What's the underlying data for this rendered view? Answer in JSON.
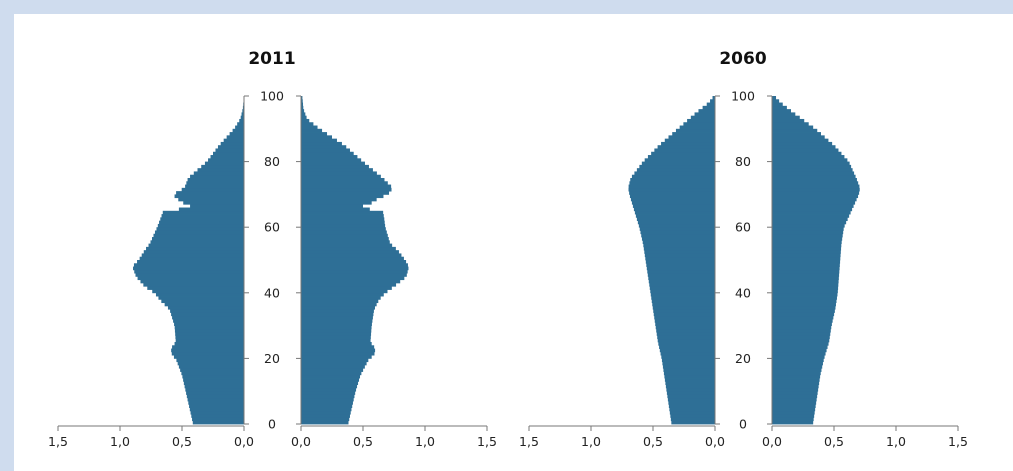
{
  "colors": {
    "bar": "#2e6f96",
    "axis": "#777777",
    "background": "#cfdcee"
  },
  "chart_data": [
    {
      "type": "bar",
      "subtype": "population-pyramid",
      "title": "2011",
      "xlabel": "",
      "ylabel": "",
      "ylim": [
        0,
        100
      ],
      "xlim": [
        0,
        1.5
      ],
      "y_ticks": [
        "0",
        "20",
        "40",
        "60",
        "80",
        "100"
      ],
      "x_ticks": [
        "1,5",
        "1,0",
        "0,5",
        "0,0",
        "0,0",
        "0,5",
        "1,0",
        "1,5"
      ],
      "grid": false,
      "profile_ages": [
        0,
        5,
        10,
        15,
        20,
        21,
        23,
        25,
        30,
        35,
        38,
        40,
        42,
        45,
        48,
        50,
        53,
        55,
        60,
        63,
        65,
        66,
        67,
        69,
        70,
        72,
        75,
        80,
        85,
        90,
        93,
        96,
        100
      ],
      "series": [
        {
          "side": "left",
          "values": [
            0.41,
            0.44,
            0.47,
            0.5,
            0.55,
            0.58,
            0.59,
            0.55,
            0.56,
            0.6,
            0.68,
            0.72,
            0.8,
            0.87,
            0.9,
            0.85,
            0.8,
            0.76,
            0.7,
            0.67,
            0.65,
            0.4,
            0.47,
            0.55,
            0.57,
            0.48,
            0.45,
            0.3,
            0.2,
            0.08,
            0.03,
            0.01,
            0.0
          ]
        },
        {
          "side": "right",
          "values": [
            0.38,
            0.41,
            0.44,
            0.48,
            0.55,
            0.59,
            0.6,
            0.56,
            0.57,
            0.59,
            0.63,
            0.68,
            0.75,
            0.85,
            0.87,
            0.84,
            0.78,
            0.72,
            0.68,
            0.67,
            0.66,
            0.45,
            0.55,
            0.63,
            0.7,
            0.74,
            0.66,
            0.5,
            0.35,
            0.15,
            0.05,
            0.02,
            0.01
          ]
        }
      ]
    },
    {
      "type": "bar",
      "subtype": "population-pyramid",
      "title": "2060",
      "xlabel": "",
      "ylabel": "",
      "ylim": [
        0,
        100
      ],
      "xlim": [
        0,
        1.5
      ],
      "y_ticks": [
        "0",
        "20",
        "40",
        "60",
        "80",
        "100"
      ],
      "x_ticks": [
        "1,5",
        "1,0",
        "0,5",
        "0,0",
        "0,0",
        "0,5",
        "1,0",
        "1,5"
      ],
      "grid": false,
      "profile_ages": [
        0,
        5,
        10,
        15,
        20,
        25,
        30,
        35,
        40,
        45,
        50,
        55,
        60,
        65,
        70,
        72,
        75,
        80,
        85,
        90,
        95,
        98,
        100
      ],
      "series": [
        {
          "side": "left",
          "values": [
            0.35,
            0.37,
            0.39,
            0.41,
            0.43,
            0.46,
            0.48,
            0.5,
            0.52,
            0.54,
            0.56,
            0.58,
            0.61,
            0.65,
            0.69,
            0.7,
            0.68,
            0.58,
            0.45,
            0.3,
            0.15,
            0.05,
            0.01
          ]
        },
        {
          "side": "right",
          "values": [
            0.33,
            0.35,
            0.37,
            0.39,
            0.42,
            0.46,
            0.48,
            0.51,
            0.53,
            0.54,
            0.55,
            0.56,
            0.58,
            0.64,
            0.7,
            0.71,
            0.68,
            0.62,
            0.5,
            0.35,
            0.17,
            0.07,
            0.02
          ]
        }
      ]
    }
  ]
}
